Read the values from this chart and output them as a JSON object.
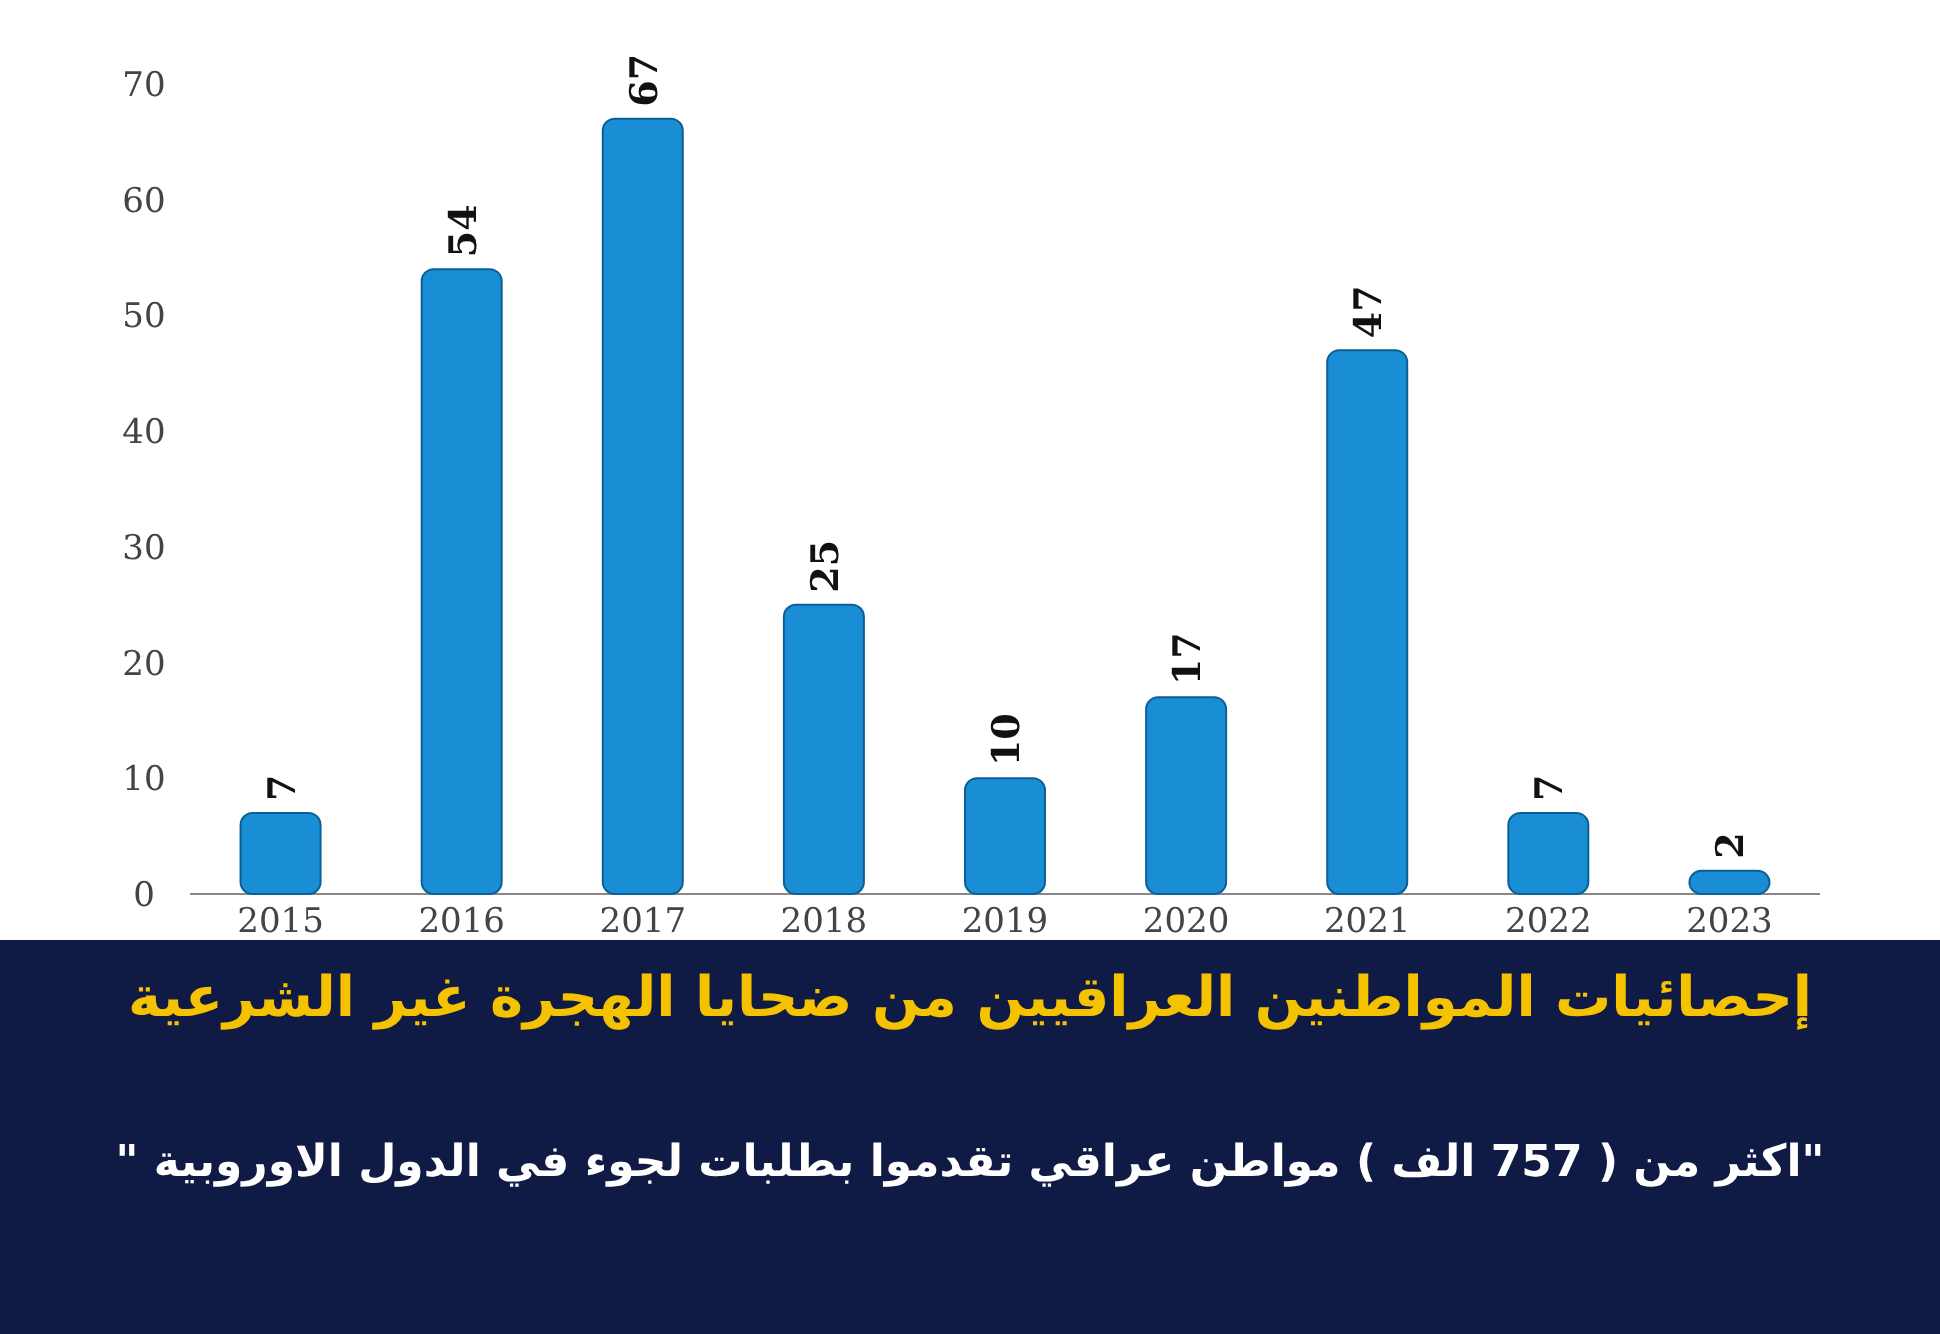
{
  "chart_data": {
    "type": "bar",
    "title": "إحصائيات المواطنين العراقيين من ضحايا الهجرة غير الشرعية",
    "subtitle": "\"اكثر من ( 757 الف ) مواطن عراقي تقدموا بطلبات لجوء في الدول الاوروبية \"",
    "categories": [
      "2015",
      "2016",
      "2017",
      "2018",
      "2019",
      "2020",
      "2021",
      "2022",
      "2023"
    ],
    "values": [
      7,
      54,
      67,
      25,
      10,
      17,
      47,
      7,
      2
    ],
    "color": "#1a8ed4",
    "ylim": [
      0,
      70
    ],
    "yticks": [
      0,
      10,
      20,
      30,
      40,
      50,
      60,
      70
    ],
    "data_labels": true
  }
}
